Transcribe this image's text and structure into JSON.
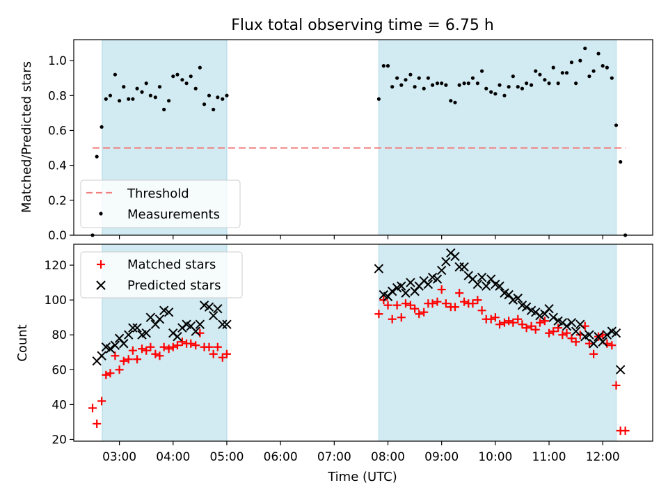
{
  "figure": {
    "title": "Flux total observing time = 6.75 h",
    "xlabel": "Time (UTC)",
    "xticks": [
      "03:00",
      "04:00",
      "05:00",
      "06:00",
      "07:00",
      "08:00",
      "09:00",
      "10:00",
      "11:00",
      "12:00"
    ],
    "colors": {
      "band": "#add8e6",
      "threshold": "#f08080",
      "matched": "#ff0000",
      "predicted": "#000000",
      "measurement": "#000000"
    }
  },
  "chart_data": [
    {
      "type": "scatter",
      "ylabel": "Matched/Predicted stars",
      "ylim": [
        0,
        1.12
      ],
      "yticks": [
        "0.0",
        "0.2",
        "0.4",
        "0.6",
        "0.8",
        "1.0"
      ],
      "shaded_intervals_h": [
        [
          2.68,
          5.0
        ],
        [
          7.83,
          12.25
        ]
      ],
      "threshold": {
        "name": "Threshold",
        "value": 0.5,
        "x_range_h": [
          2.5,
          12.42
        ]
      },
      "series": [
        {
          "name": "Measurements",
          "x_h": [
            2.5,
            2.58,
            2.67,
            2.75,
            2.83,
            2.92,
            3.0,
            3.08,
            3.17,
            3.25,
            3.33,
            3.42,
            3.5,
            3.58,
            3.67,
            3.75,
            3.83,
            3.92,
            4.0,
            4.08,
            4.17,
            4.25,
            4.33,
            4.42,
            4.5,
            4.58,
            4.67,
            4.75,
            4.83,
            4.92,
            5.0,
            7.83,
            7.92,
            8.0,
            8.08,
            8.17,
            8.25,
            8.33,
            8.42,
            8.5,
            8.58,
            8.67,
            8.75,
            8.83,
            8.92,
            9.0,
            9.08,
            9.17,
            9.25,
            9.33,
            9.42,
            9.5,
            9.58,
            9.67,
            9.75,
            9.83,
            9.92,
            10.0,
            10.08,
            10.17,
            10.25,
            10.33,
            10.42,
            10.5,
            10.58,
            10.67,
            10.75,
            10.83,
            10.92,
            11.0,
            11.08,
            11.17,
            11.25,
            11.33,
            11.42,
            11.5,
            11.58,
            11.67,
            11.75,
            11.83,
            11.92,
            12.0,
            12.08,
            12.17,
            12.25,
            12.33,
            12.42
          ],
          "y": [
            0.0,
            0.45,
            0.62,
            0.78,
            0.8,
            0.92,
            0.77,
            0.85,
            0.78,
            0.78,
            0.84,
            0.82,
            0.87,
            0.8,
            0.79,
            0.85,
            0.72,
            0.77,
            0.91,
            0.92,
            0.89,
            0.87,
            0.91,
            0.84,
            0.96,
            0.75,
            0.8,
            0.72,
            0.79,
            0.78,
            0.8,
            0.78,
            0.97,
            0.97,
            0.85,
            0.9,
            0.86,
            0.89,
            0.92,
            0.85,
            0.9,
            0.84,
            0.9,
            0.86,
            0.87,
            0.87,
            0.86,
            0.77,
            0.76,
            0.86,
            0.87,
            0.87,
            0.9,
            0.87,
            0.94,
            0.84,
            0.82,
            0.81,
            0.86,
            0.8,
            0.85,
            0.91,
            0.85,
            0.84,
            0.87,
            0.86,
            0.94,
            0.92,
            0.89,
            0.87,
            0.96,
            0.87,
            0.93,
            0.93,
            0.99,
            0.87,
            1.0,
            1.07,
            0.91,
            0.94,
            1.04,
            0.97,
            0.96,
            0.9,
            0.63,
            0.42,
            0.0
          ]
        }
      ],
      "legend": {
        "position": "lower left",
        "entries": [
          "Threshold",
          "Measurements"
        ]
      }
    },
    {
      "type": "scatter",
      "ylabel": "Count",
      "ylim": [
        19,
        132
      ],
      "yticks": [
        "20",
        "40",
        "60",
        "80",
        "100",
        "120"
      ],
      "shaded_intervals_h": [
        [
          2.68,
          5.0
        ],
        [
          7.83,
          12.25
        ]
      ],
      "series": [
        {
          "name": "Matched stars",
          "marker": "+",
          "x_h": [
            2.5,
            2.58,
            2.67,
            2.75,
            2.83,
            2.92,
            3.0,
            3.08,
            3.17,
            3.25,
            3.33,
            3.42,
            3.5,
            3.58,
            3.67,
            3.75,
            3.83,
            3.92,
            4.0,
            4.08,
            4.17,
            4.25,
            4.33,
            4.42,
            4.5,
            4.58,
            4.67,
            4.75,
            4.83,
            4.92,
            5.0,
            7.83,
            7.92,
            8.0,
            8.08,
            8.17,
            8.25,
            8.33,
            8.42,
            8.5,
            8.58,
            8.67,
            8.75,
            8.83,
            8.92,
            9.0,
            9.08,
            9.17,
            9.25,
            9.33,
            9.42,
            9.5,
            9.58,
            9.67,
            9.75,
            9.83,
            9.92,
            10.0,
            10.08,
            10.17,
            10.25,
            10.33,
            10.42,
            10.5,
            10.58,
            10.67,
            10.75,
            10.83,
            10.92,
            11.0,
            11.08,
            11.17,
            11.25,
            11.33,
            11.42,
            11.5,
            11.58,
            11.67,
            11.75,
            11.83,
            11.92,
            12.0,
            12.08,
            12.17,
            12.25,
            12.33,
            12.42
          ],
          "y": [
            38,
            29,
            42,
            57,
            58,
            68,
            60,
            65,
            66,
            71,
            66,
            72,
            71,
            73,
            69,
            68,
            73,
            72,
            73,
            74,
            76,
            75,
            75,
            74,
            81,
            73,
            73,
            69,
            73,
            67,
            69,
            92,
            100,
            97,
            89,
            97,
            90,
            98,
            97,
            95,
            92,
            93,
            98,
            98,
            99,
            106,
            98,
            96,
            96,
            104,
            99,
            98,
            98,
            100,
            94,
            89,
            89,
            90,
            86,
            87,
            88,
            87,
            89,
            86,
            84,
            85,
            83,
            87,
            88,
            81,
            82,
            84,
            80,
            81,
            78,
            76,
            80,
            85,
            75,
            69,
            79,
            80,
            75,
            74,
            51,
            25,
            25
          ]
        },
        {
          "name": "Predicted stars",
          "marker": "x",
          "x_h": [
            2.58,
            2.67,
            2.75,
            2.83,
            2.92,
            3.0,
            3.08,
            3.17,
            3.25,
            3.33,
            3.42,
            3.5,
            3.58,
            3.67,
            3.75,
            3.83,
            3.92,
            4.0,
            4.08,
            4.17,
            4.25,
            4.33,
            4.42,
            4.5,
            4.58,
            4.67,
            4.75,
            4.83,
            4.92,
            5.0,
            7.83,
            7.92,
            8.0,
            8.08,
            8.17,
            8.25,
            8.33,
            8.42,
            8.5,
            8.58,
            8.67,
            8.75,
            8.83,
            8.92,
            9.0,
            9.08,
            9.17,
            9.25,
            9.33,
            9.42,
            9.5,
            9.58,
            9.67,
            9.75,
            9.83,
            9.92,
            10.0,
            10.08,
            10.17,
            10.25,
            10.33,
            10.42,
            10.5,
            10.58,
            10.67,
            10.75,
            10.83,
            10.92,
            11.0,
            11.08,
            11.17,
            11.25,
            11.33,
            11.42,
            11.5,
            11.58,
            11.67,
            11.75,
            11.83,
            11.92,
            12.0,
            12.08,
            12.17,
            12.25,
            12.33
          ],
          "y": [
            65,
            68,
            73,
            72,
            74,
            78,
            75,
            80,
            84,
            84,
            80,
            81,
            90,
            86,
            89,
            94,
            93,
            81,
            79,
            84,
            86,
            85,
            82,
            86,
            97,
            96,
            91,
            95,
            86,
            86,
            118,
            103,
            102,
            105,
            107,
            108,
            104,
            110,
            105,
            108,
            111,
            109,
            113,
            112,
            117,
            122,
            127,
            125,
            119,
            119,
            114,
            112,
            109,
            113,
            108,
            112,
            109,
            108,
            104,
            103,
            100,
            101,
            97,
            96,
            94,
            93,
            91,
            92,
            95,
            90,
            88,
            87,
            85,
            87,
            82,
            86,
            79,
            80,
            75,
            79,
            76,
            80,
            82,
            81,
            60
          ]
        }
      ],
      "legend": {
        "position": "upper left",
        "entries": [
          "Matched stars",
          "Predicted stars"
        ]
      }
    }
  ]
}
